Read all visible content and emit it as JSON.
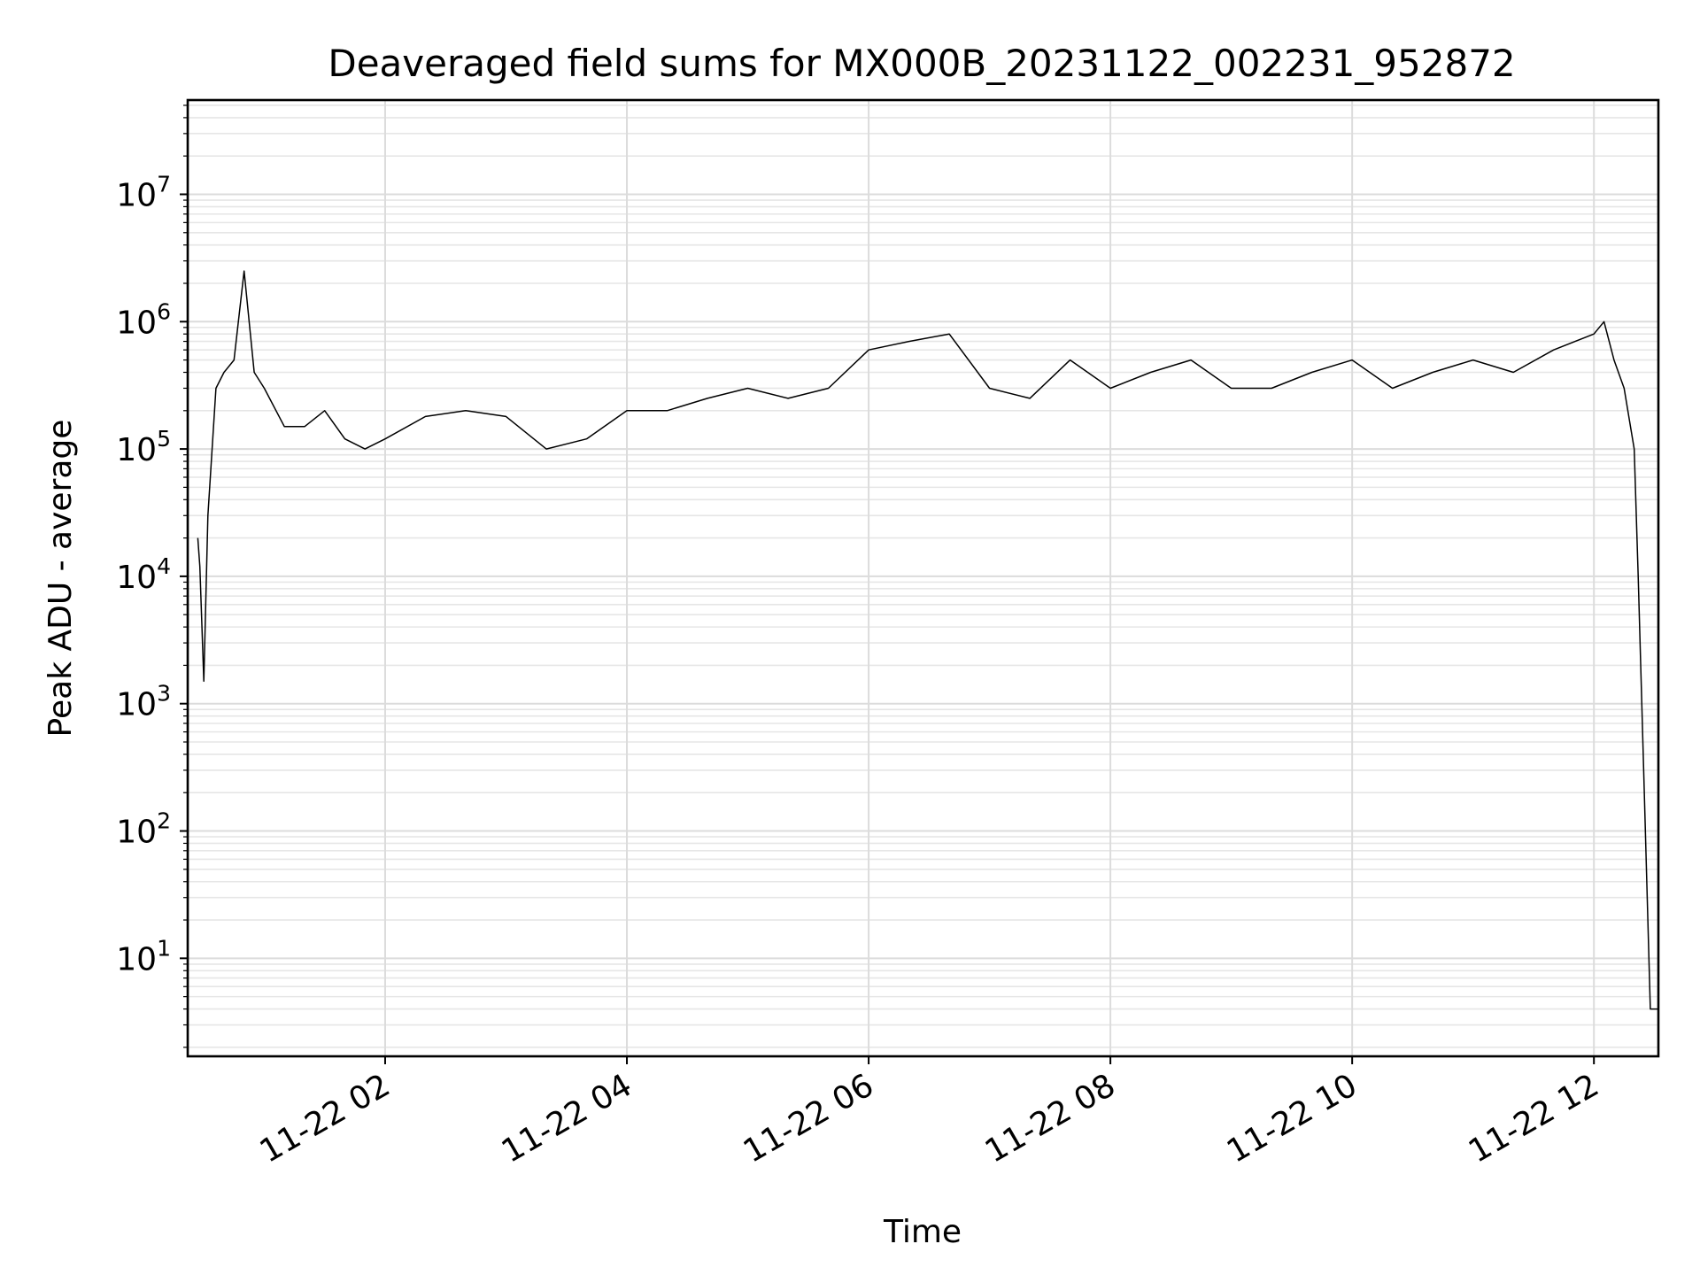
{
  "chart_data": {
    "type": "line",
    "title": "Deaveraged field sums for MX000B_20231122_002231_952872",
    "xlabel": "Time",
    "ylabel": "Peak ADU - average",
    "xscale": "time",
    "yscale": "log",
    "xlim": [
      "2023-11-22 00:22",
      "2023-11-22 12:32"
    ],
    "ylim": [
      1.7,
      55000000
    ],
    "grid": true,
    "x_ticks": [
      "11-22 02",
      "11-22 04",
      "11-22 06",
      "11-22 08",
      "11-22 10",
      "11-22 12"
    ],
    "y_ticks": [
      {
        "base": "10",
        "exp": "1"
      },
      {
        "base": "10",
        "exp": "2"
      },
      {
        "base": "10",
        "exp": "3"
      },
      {
        "base": "10",
        "exp": "4"
      },
      {
        "base": "10",
        "exp": "5"
      },
      {
        "base": "10",
        "exp": "6"
      },
      {
        "base": "10",
        "exp": "7"
      }
    ],
    "series_color": "#000000",
    "series": [
      {
        "x": [
          "2023-11-22 00:27",
          "2023-11-22 00:28",
          "2023-11-22 00:30",
          "2023-11-22 00:32",
          "2023-11-22 00:36",
          "2023-11-22 00:40",
          "2023-11-22 00:45",
          "2023-11-22 00:50",
          "2023-11-22 00:55",
          "2023-11-22 01:00",
          "2023-11-22 01:10",
          "2023-11-22 01:20",
          "2023-11-22 01:30",
          "2023-11-22 01:40",
          "2023-11-22 01:50",
          "2023-11-22 02:00",
          "2023-11-22 02:20",
          "2023-11-22 02:40",
          "2023-11-22 03:00",
          "2023-11-22 03:20",
          "2023-11-22 03:40",
          "2023-11-22 04:00",
          "2023-11-22 04:20",
          "2023-11-22 04:40",
          "2023-11-22 05:00",
          "2023-11-22 05:20",
          "2023-11-22 05:40",
          "2023-11-22 06:00",
          "2023-11-22 06:20",
          "2023-11-22 06:40",
          "2023-11-22 07:00",
          "2023-11-22 07:20",
          "2023-11-22 07:40",
          "2023-11-22 08:00",
          "2023-11-22 08:20",
          "2023-11-22 08:40",
          "2023-11-22 09:00",
          "2023-11-22 09:20",
          "2023-11-22 09:40",
          "2023-11-22 10:00",
          "2023-11-22 10:20",
          "2023-11-22 10:40",
          "2023-11-22 11:00",
          "2023-11-22 11:20",
          "2023-11-22 11:40",
          "2023-11-22 12:00",
          "2023-11-22 12:05",
          "2023-11-22 12:10",
          "2023-11-22 12:15",
          "2023-11-22 12:20",
          "2023-11-22 12:22",
          "2023-11-22 12:25",
          "2023-11-22 12:28",
          "2023-11-22 12:32"
        ],
        "values": [
          20000,
          12000,
          1500,
          30000,
          300000,
          400000,
          500000,
          2500000,
          400000,
          300000,
          150000,
          150000,
          200000,
          120000,
          100000,
          120000,
          180000,
          200000,
          180000,
          100000,
          120000,
          200000,
          200000,
          250000,
          300000,
          250000,
          300000,
          600000,
          700000,
          800000,
          300000,
          250000,
          500000,
          300000,
          400000,
          500000,
          300000,
          300000,
          400000,
          500000,
          300000,
          400000,
          500000,
          400000,
          600000,
          800000,
          1000000,
          500000,
          300000,
          100000,
          10000,
          200,
          4,
          4
        ]
      }
    ]
  }
}
